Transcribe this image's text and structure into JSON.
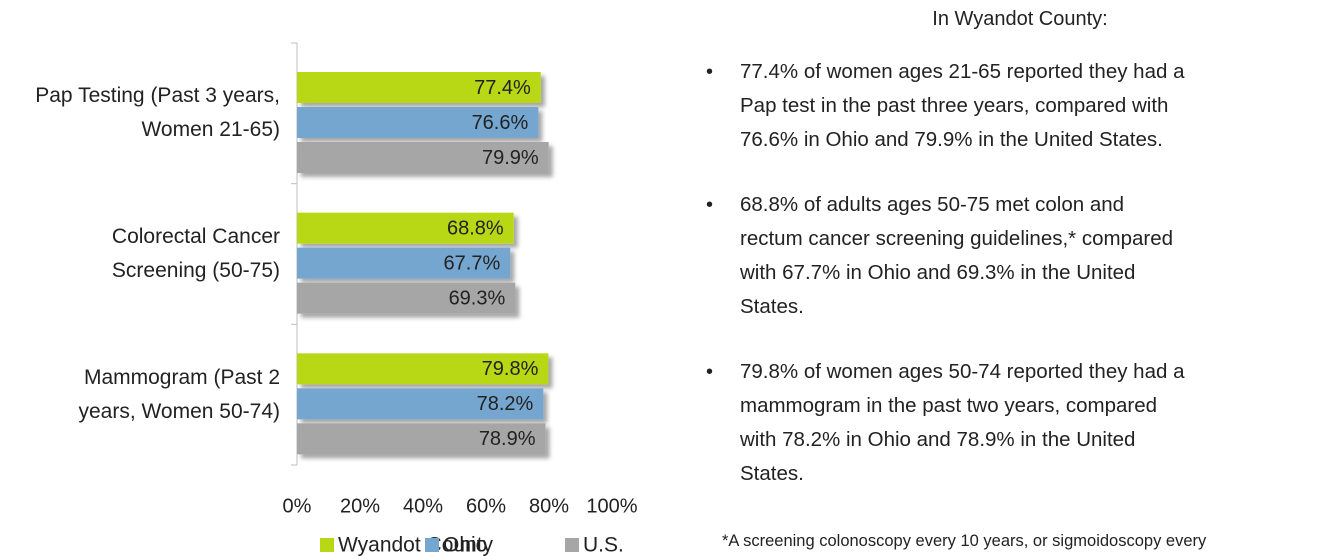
{
  "chart_data": {
    "type": "bar",
    "orientation": "horizontal",
    "categories": [
      "Pap Testing (Past 3 years, Women 21-65)",
      "Colorectal Cancer Screening (50-75)",
      "Mammogram (Past 2 years, Women 50-74)"
    ],
    "series": [
      {
        "name": "Wyandot County",
        "color": "#b8d815",
        "values": [
          77.4,
          68.8,
          79.8
        ],
        "value_labels": [
          "77.4%",
          "68.8%",
          "79.8%"
        ]
      },
      {
        "name": "Ohio",
        "color": "#74a6d0",
        "values": [
          76.6,
          67.7,
          78.2
        ],
        "value_labels": [
          "76.6%",
          "67.7%",
          "78.2%"
        ]
      },
      {
        "name": "U.S.",
        "color": "#a6a6a6",
        "values": [
          79.9,
          69.3,
          78.9
        ],
        "value_labels": [
          "79.9%",
          "69.3%",
          "78.9%"
        ]
      }
    ],
    "xlim": [
      0,
      100
    ],
    "xticks": [
      {
        "value": 0,
        "label": "0%"
      },
      {
        "value": 20,
        "label": "20%"
      },
      {
        "value": 40,
        "label": "40%"
      },
      {
        "value": 60,
        "label": "60%"
      },
      {
        "value": 80,
        "label": "80%"
      },
      {
        "value": 100,
        "label": "100%"
      }
    ],
    "legend": "bottom"
  },
  "text": {
    "heading": "In Wyandot County:",
    "bullets": [
      [
        "77.4% of women ages 21-65 reported they had a",
        "Pap test in the past three years, compared with",
        "76.6% in Ohio and 79.9% in the United States."
      ],
      [
        "68.8% of adults ages 50-75 met colon and",
        "rectum cancer screening guidelines,* compared",
        "with 67.7% in Ohio and 69.3% in the United",
        "States."
      ],
      [
        "79.8% of women ages 50-74 reported they had a",
        "mammogram in the past two years, compared",
        "with 78.2% in Ohio and 78.9% in the United",
        "States."
      ]
    ],
    "footnote": "*A screening colonoscopy every 10 years, or sigmoidoscopy every"
  }
}
